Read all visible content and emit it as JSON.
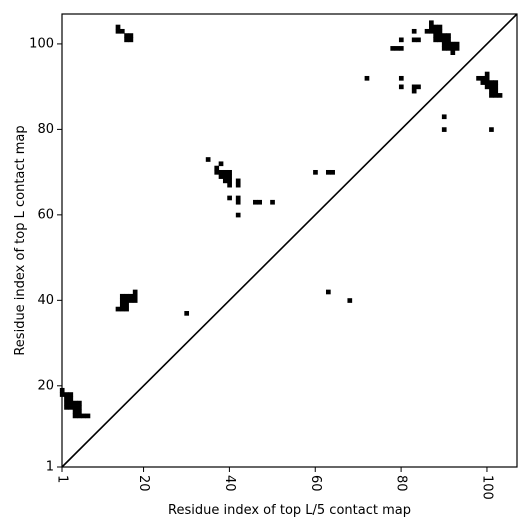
{
  "chart_data": {
    "type": "heatmap",
    "title": "",
    "xlabel": "Residue index of top L/5 contact map",
    "ylabel": "Residue index of top L contact map",
    "xlim": [
      1,
      107
    ],
    "ylim": [
      1,
      107
    ],
    "x_ticks": [
      1,
      20,
      40,
      60,
      80,
      100
    ],
    "y_ticks": [
      1,
      20,
      40,
      60,
      80,
      100
    ],
    "x_tick_labels": [
      "1",
      "20",
      "40",
      "60",
      "80",
      "100"
    ],
    "y_tick_labels": [
      "1",
      "20",
      "40",
      "60",
      "80",
      "100"
    ],
    "grid": false,
    "colors": {
      "contact": "#000000",
      "background": "#ffffff"
    },
    "diagonal": [
      [
        1,
        1
      ],
      [
        107,
        107
      ]
    ],
    "upper_triangle_contacts": [
      [
        14,
        104
      ],
      [
        14,
        103
      ],
      [
        15,
        103
      ],
      [
        16,
        102
      ],
      [
        17,
        102
      ],
      [
        16,
        101
      ],
      [
        17,
        101
      ],
      [
        35,
        73
      ],
      [
        38,
        72
      ],
      [
        37,
        71
      ],
      [
        37,
        70
      ],
      [
        38,
        70
      ],
      [
        39,
        70
      ],
      [
        40,
        70
      ],
      [
        38,
        69
      ],
      [
        39,
        69
      ],
      [
        40,
        69
      ],
      [
        39,
        68
      ],
      [
        40,
        68
      ],
      [
        42,
        68
      ],
      [
        40,
        67
      ],
      [
        42,
        67
      ],
      [
        40,
        64
      ],
      [
        42,
        64
      ],
      [
        42,
        63
      ],
      [
        46,
        63
      ],
      [
        47,
        63
      ],
      [
        50,
        63
      ],
      [
        42,
        60
      ],
      [
        60,
        70
      ],
      [
        63,
        70
      ],
      [
        64,
        70
      ],
      [
        72,
        92
      ],
      [
        78,
        99
      ],
      [
        79,
        99
      ],
      [
        80,
        99
      ],
      [
        80,
        101
      ],
      [
        83,
        103
      ],
      [
        83,
        101
      ],
      [
        84,
        101
      ],
      [
        80,
        92
      ],
      [
        80,
        90
      ],
      [
        83,
        90
      ],
      [
        84,
        90
      ],
      [
        83,
        89
      ],
      [
        87,
        105
      ],
      [
        87,
        104
      ],
      [
        88,
        104
      ],
      [
        89,
        104
      ],
      [
        86,
        103
      ],
      [
        87,
        103
      ],
      [
        88,
        103
      ],
      [
        89,
        103
      ],
      [
        88,
        102
      ],
      [
        89,
        102
      ],
      [
        90,
        102
      ],
      [
        91,
        102
      ],
      [
        88,
        101
      ],
      [
        89,
        101
      ],
      [
        90,
        101
      ],
      [
        91,
        101
      ],
      [
        90,
        100
      ],
      [
        91,
        100
      ],
      [
        92,
        100
      ],
      [
        93,
        100
      ],
      [
        90,
        99
      ],
      [
        91,
        99
      ],
      [
        92,
        99
      ],
      [
        93,
        99
      ],
      [
        92,
        98
      ],
      [
        90,
        83
      ],
      [
        90,
        80
      ],
      [
        100,
        93
      ],
      [
        98,
        92
      ],
      [
        99,
        92
      ],
      [
        100,
        92
      ],
      [
        99,
        91
      ],
      [
        100,
        91
      ],
      [
        101,
        91
      ],
      [
        102,
        91
      ],
      [
        100,
        90
      ],
      [
        101,
        90
      ],
      [
        102,
        90
      ],
      [
        101,
        89
      ],
      [
        102,
        89
      ],
      [
        101,
        88
      ],
      [
        102,
        88
      ],
      [
        103,
        88
      ],
      [
        101,
        80
      ]
    ],
    "lower_triangle_contacts": [
      [
        1,
        19
      ],
      [
        1,
        18
      ],
      [
        2,
        18
      ],
      [
        3,
        18
      ],
      [
        2,
        17
      ],
      [
        3,
        17
      ],
      [
        2,
        16
      ],
      [
        3,
        16
      ],
      [
        4,
        16
      ],
      [
        5,
        16
      ],
      [
        2,
        15
      ],
      [
        3,
        15
      ],
      [
        4,
        15
      ],
      [
        5,
        15
      ],
      [
        4,
        14
      ],
      [
        5,
        14
      ],
      [
        4,
        13
      ],
      [
        5,
        13
      ],
      [
        6,
        13
      ],
      [
        7,
        13
      ],
      [
        18,
        42
      ],
      [
        15,
        41
      ],
      [
        16,
        41
      ],
      [
        17,
        41
      ],
      [
        18,
        41
      ],
      [
        15,
        40
      ],
      [
        16,
        40
      ],
      [
        17,
        40
      ],
      [
        18,
        40
      ],
      [
        15,
        39
      ],
      [
        16,
        39
      ],
      [
        14,
        38
      ],
      [
        15,
        38
      ],
      [
        16,
        38
      ],
      [
        30,
        37
      ],
      [
        63,
        42
      ],
      [
        68,
        40
      ]
    ]
  }
}
